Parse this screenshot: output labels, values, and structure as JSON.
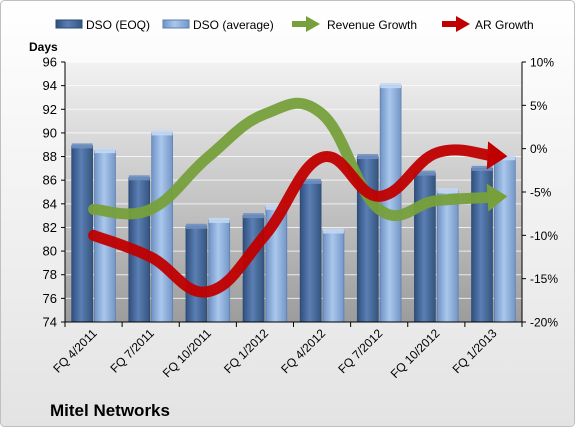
{
  "chart_data": {
    "type": "bar",
    "company": "Mitel Networks",
    "ylabel": "Days",
    "categories": [
      "FQ 4/2011",
      "FQ 7/2011",
      "FQ 10/2011",
      "FQ 1/2012",
      "FQ 4/2012",
      "FQ 7/2012",
      "FQ 10/2012",
      "FQ 1/2013"
    ],
    "ylim": [
      74,
      96
    ],
    "yticks": [
      74,
      76,
      78,
      80,
      82,
      84,
      86,
      88,
      90,
      92,
      94,
      96
    ],
    "y2lim": [
      -20,
      10
    ],
    "y2ticks": [
      "-20%",
      "-15%",
      "-10%",
      "-5%",
      "0%",
      "5%",
      "10%"
    ],
    "y2values": [
      -20,
      -15,
      -10,
      -5,
      0,
      5,
      10
    ],
    "grid": true,
    "legend_position": "top",
    "series": [
      {
        "name": "DSO (EOQ)",
        "kind": "bar",
        "axis": "left",
        "color": "#4a6fa5",
        "values": [
          88.9,
          86.2,
          82.1,
          83.0,
          85.9,
          88.0,
          86.6,
          87.0
        ]
      },
      {
        "name": "DSO (average)",
        "kind": "bar",
        "axis": "left",
        "color": "#8fb3e0",
        "values": [
          88.5,
          90.0,
          82.6,
          83.7,
          81.7,
          94.0,
          85.1,
          87.9
        ]
      },
      {
        "name": "Revenue Growth",
        "kind": "line-arrow",
        "axis": "right",
        "color": "#77a03b",
        "values": [
          -7.0,
          -7.0,
          -1.0,
          4.0,
          4.0,
          -7.0,
          -6.0,
          -5.6
        ]
      },
      {
        "name": "AR Growth",
        "kind": "line-arrow",
        "axis": "right",
        "color": "#c00000",
        "values": [
          -10.0,
          -12.5,
          -16.5,
          -10.0,
          -1.0,
          -5.5,
          -0.5,
          -0.8
        ]
      }
    ]
  }
}
